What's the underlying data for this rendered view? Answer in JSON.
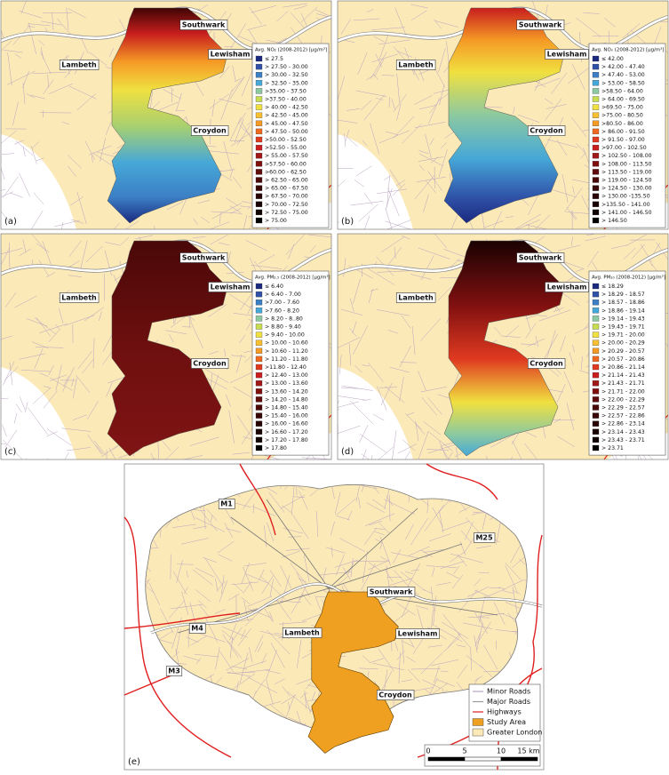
{
  "panels": [
    {
      "letter": "(a)",
      "places": [
        "Southwark",
        "Lambeth",
        "Lewisham",
        "Croydon"
      ],
      "legend_title": "Avg. NO₂ (2008-2012) [μg/m³]",
      "legend": [
        {
          "label": "≤ 27.5",
          "color": "#1a2a80"
        },
        {
          "label": "> 27.50 - 30.00",
          "color": "#2f52a8"
        },
        {
          "label": "> 30.00 - 32.50",
          "color": "#3c7fc4"
        },
        {
          "label": "> 32.50 - 35.00",
          "color": "#46a8d8"
        },
        {
          "label": ">35.00 - 37.50",
          "color": "#8cc9a0"
        },
        {
          "label": ">37.50 - 40.00",
          "color": "#c8dc50"
        },
        {
          "label": "> 40.00 - 42.50",
          "color": "#f0e040"
        },
        {
          "label": "> 42.50 - 45.00",
          "color": "#f7c030"
        },
        {
          "label": "> 45.00 - 47.50",
          "color": "#f59a25"
        },
        {
          "label": "> 47.50 - 50.00",
          "color": "#ef6a20"
        },
        {
          "label": ">50.00 - 52.50",
          "color": "#e03a20"
        },
        {
          "label": ">52.50 - 55.00",
          "color": "#c81e1e"
        },
        {
          "label": "> 55.00 - 57.50",
          "color": "#a01818"
        },
        {
          "label": ">57.50 - 60.00",
          "color": "#801010"
        },
        {
          "label": ">60.00 - 62.50",
          "color": "#600c0c"
        },
        {
          "label": "> 62.50 - 65.00",
          "color": "#4a0808"
        },
        {
          "label": "> 65.00 - 67.50",
          "color": "#380606"
        },
        {
          "label": "> 67.50 - 70.00",
          "color": "#280404"
        },
        {
          "label": "> 70.00 - 72.50",
          "color": "#1a0202"
        },
        {
          "label": "> 72.50  - 75.00",
          "color": "#100101"
        },
        {
          "label": "> 75.00",
          "color": "#000000"
        }
      ]
    },
    {
      "letter": "(b)",
      "places": [
        "Southwark",
        "Lambeth",
        "Lewisham",
        "Croydon"
      ],
      "legend_title": "Avg. NOₓ (2008-2012) [μg/m³]",
      "legend": [
        {
          "label": "≤ 42.00",
          "color": "#1a2a80"
        },
        {
          "label": "> 42.00 - 47.40",
          "color": "#2f52a8"
        },
        {
          "label": "> 47.40 - 53.00",
          "color": "#3c7fc4"
        },
        {
          "label": "> 53.00 - 58.50",
          "color": "#46a8d8"
        },
        {
          "label": ">58.50 - 64.00",
          "color": "#8cc9a0"
        },
        {
          "label": "> 64.00 - 69.50",
          "color": "#c8dc50"
        },
        {
          "label": ">69.50 - 75.00",
          "color": "#f0e040"
        },
        {
          "label": ">75.00 - 80.50",
          "color": "#f7c030"
        },
        {
          "label": ">80.50 - 86.00",
          "color": "#f59a25"
        },
        {
          "label": "> 86.00 - 91.50",
          "color": "#ef6a20"
        },
        {
          "label": "> 91.50 - 97.00",
          "color": "#e03a20"
        },
        {
          "label": ">97.00 - 102.50",
          "color": "#c81e1e"
        },
        {
          "label": "> 102.50 - 108.00",
          "color": "#a01818"
        },
        {
          "label": "> 108.00 - 113.50",
          "color": "#801010"
        },
        {
          "label": "> 113.50 - 119.00",
          "color": "#600c0c"
        },
        {
          "label": "> 119.00 - 124.50",
          "color": "#4a0808"
        },
        {
          "label": "> 124.50 - 130.00",
          "color": "#380606"
        },
        {
          "label": "> 130.00 -135.50",
          "color": "#280404"
        },
        {
          "label": ">135.50 - 141.00",
          "color": "#1a0202"
        },
        {
          "label": "> 141.00 - 146.50",
          "color": "#100101"
        },
        {
          "label": "> 146.50",
          "color": "#000000"
        }
      ]
    },
    {
      "letter": "(c)",
      "places": [
        "Southwark",
        "Lambeth",
        "Lewisham",
        "Croydon"
      ],
      "legend_title": "Avg. PM₂.₅ (2008-2012) [μg/m³]",
      "legend": [
        {
          "label": "≤ 6.40",
          "color": "#1a2a80"
        },
        {
          "label": "> 6.40 - 7.00",
          "color": "#2f52a8"
        },
        {
          "label": ">7.00 - 7.60",
          "color": "#3c7fc4"
        },
        {
          "label": ">7.60 - 8.20",
          "color": "#46a8d8"
        },
        {
          "label": "> 8.20 - 8..80",
          "color": "#8cc9a0"
        },
        {
          "label": "> 8.80 - 9.40",
          "color": "#c8dc50"
        },
        {
          "label": "> 9.40 - 10.00",
          "color": "#f0e040"
        },
        {
          "label": "> 10.00 - 10.60",
          "color": "#f7c030"
        },
        {
          "label": "> 10.60 - 11.20",
          "color": "#f59a25"
        },
        {
          "label": "> 11.20 - 11.80",
          "color": "#ef6a20"
        },
        {
          "label": ">11.80 - 12.40",
          "color": "#e03a20"
        },
        {
          "label": "> 12.40 - 13.00",
          "color": "#c81e1e"
        },
        {
          "label": "> 13.00 - 13.60",
          "color": "#a01818"
        },
        {
          "label": "> 13.60 - 14.20",
          "color": "#801010"
        },
        {
          "label": "> 14.20 - 14.80",
          "color": "#600c0c"
        },
        {
          "label": "> 14.80 - 15.40",
          "color": "#4a0808"
        },
        {
          "label": "> 15.40 - 16.00",
          "color": "#380606"
        },
        {
          "label": "> 16.00 - 16.60",
          "color": "#280404"
        },
        {
          "label": "> 16.60 - 17.20",
          "color": "#1a0202"
        },
        {
          "label": "> 17.20 - 17.80",
          "color": "#100101"
        },
        {
          "label": "> 17.80",
          "color": "#000000"
        }
      ]
    },
    {
      "letter": "(d)",
      "places": [
        "Southwark",
        "Lambeth",
        "Lewisham",
        "Croydon"
      ],
      "legend_title": "Avg. PM₁₀ (2008-2012) [μg/m³]",
      "legend": [
        {
          "label": "≤ 18.29",
          "color": "#1a2a80"
        },
        {
          "label": "> 18.29 - 18.57",
          "color": "#2f52a8"
        },
        {
          "label": "> 18.57 - 18.86",
          "color": "#3c7fc4"
        },
        {
          "label": "> 18.86 - 19.14",
          "color": "#46a8d8"
        },
        {
          "label": "> 19.14 - 19.43",
          "color": "#8cc9a0"
        },
        {
          "label": "> 19.43 - 19.71",
          "color": "#c8dc50"
        },
        {
          "label": "> 19.71 - 20.00",
          "color": "#f0e040"
        },
        {
          "label": "> 20.00 - 20.29",
          "color": "#f7c030"
        },
        {
          "label": "> 20.29 - 20.57",
          "color": "#f59a25"
        },
        {
          "label": "> 20.57 - 20.86",
          "color": "#ef6a20"
        },
        {
          "label": "> 20.86 - 21.14",
          "color": "#e03a20"
        },
        {
          "label": "> 21.14 - 21.43",
          "color": "#c81e1e"
        },
        {
          "label": "> 21.43 - 21.71",
          "color": "#a01818"
        },
        {
          "label": "> 21.71 - 22.00",
          "color": "#801010"
        },
        {
          "label": "> 22.00 - 22.29",
          "color": "#600c0c"
        },
        {
          "label": "> 22.29 - 22.57",
          "color": "#4a0808"
        },
        {
          "label": "> 22.57 - 22.86",
          "color": "#380606"
        },
        {
          "label": "> 22.86 - 23.14",
          "color": "#280404"
        },
        {
          "label": "> 23.14 - 23.43",
          "color": "#1a0202"
        },
        {
          "label": "> 23.43 - 23.71",
          "color": "#100101"
        },
        {
          "label": "> 23.71",
          "color": "#000000"
        }
      ]
    }
  ],
  "map_e": {
    "letter": "(e)",
    "places": [
      "Southwark",
      "Lambeth",
      "Lewisham",
      "Croydon"
    ],
    "highways": [
      "M1",
      "M25",
      "M4",
      "M3"
    ],
    "legend": [
      {
        "label": "Minor Roads",
        "color": "#b9a3c0",
        "symbol": "line"
      },
      {
        "label": "Major Roads",
        "color": "#9a9a9a",
        "symbol": "line"
      },
      {
        "label": "Highways",
        "color": "#e02020",
        "symbol": "line"
      },
      {
        "label": "Study Area",
        "color": "#f0a020",
        "symbol": "box"
      },
      {
        "label": "Greater London",
        "color": "#fbe9b7",
        "symbol": "box"
      }
    ],
    "scale_bar": [
      "0",
      "5",
      "10",
      "15 km"
    ]
  }
}
